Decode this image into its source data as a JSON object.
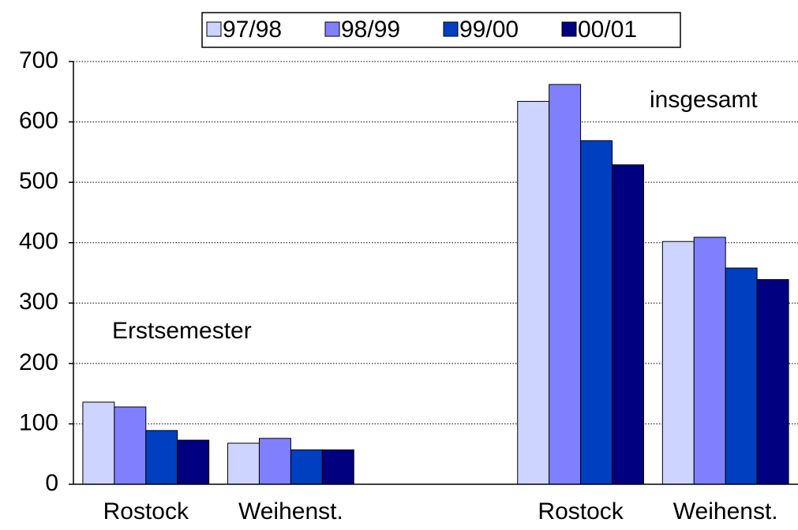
{
  "chart_data": {
    "type": "bar",
    "categories": [
      "Rostock",
      "Weihenst.",
      null,
      "Rostock",
      "Weihenst."
    ],
    "series": [
      {
        "name": "97/98",
        "color": "#ccd4ff",
        "values": [
          136,
          68,
          null,
          634,
          402
        ]
      },
      {
        "name": "98/99",
        "color": "#8080ff",
        "values": [
          128,
          76,
          null,
          662,
          409
        ]
      },
      {
        "name": "99/00",
        "color": "#0040c0",
        "values": [
          89,
          57,
          null,
          569,
          358
        ]
      },
      {
        "name": "00/01",
        "color": "#000080",
        "values": [
          73,
          57,
          null,
          529,
          339
        ]
      }
    ],
    "annotations": [
      "Erstsemester",
      "insgesamt"
    ],
    "ylim": [
      0,
      700
    ],
    "yticks": [
      0,
      100,
      200,
      300,
      400,
      500,
      600,
      700
    ],
    "grid": true
  }
}
